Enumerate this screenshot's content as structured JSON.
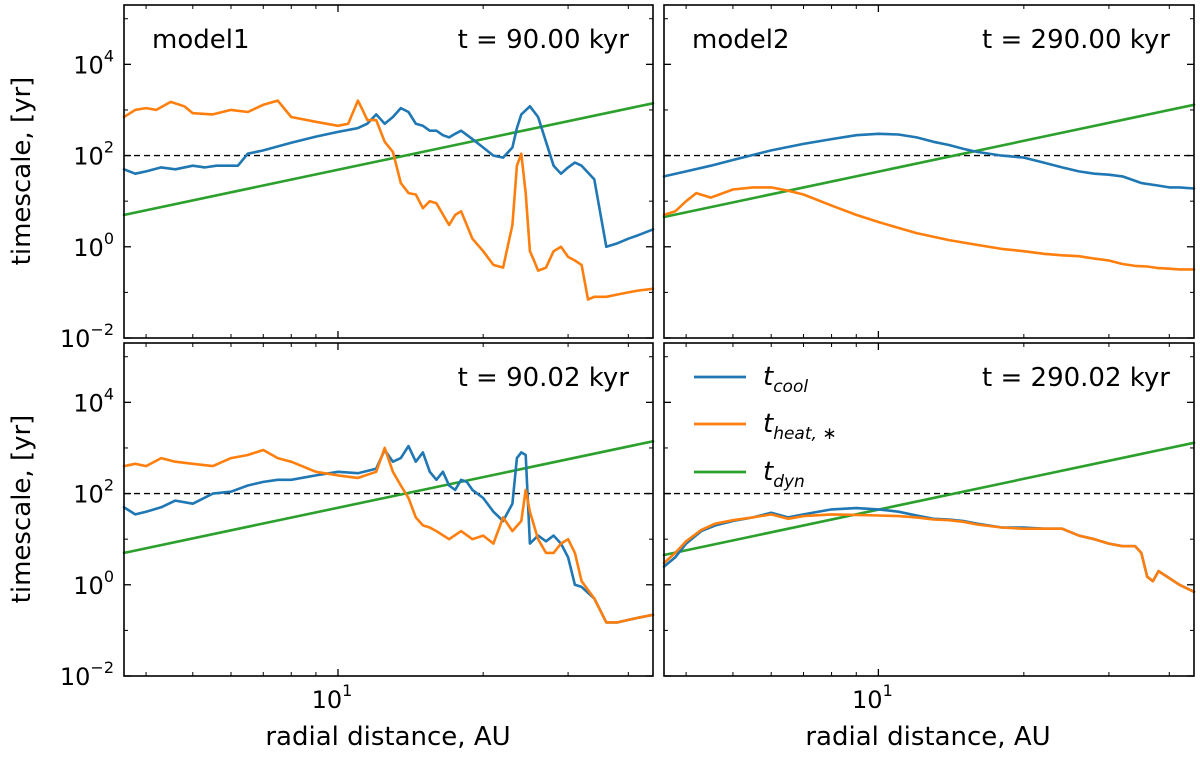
{
  "colors": {
    "t_cool": "#1f77b4",
    "t_heat": "#ff7f0e",
    "t_dyn": "#2ca02c",
    "reference": "#000000"
  },
  "axes": {
    "xlabel": "radial distance, AU",
    "ylabel": "timescale, [yr]",
    "x_tick_label": {
      "base": "10",
      "exp": "1"
    },
    "y_tick_labels": [
      {
        "base": "10",
        "exp": "4",
        "value": 10000
      },
      {
        "base": "10",
        "exp": "2",
        "value": 100
      },
      {
        "base": "10",
        "exp": "0",
        "value": 1
      },
      {
        "base": "10",
        "exp": "−2",
        "value": 0.01
      }
    ],
    "xlim": [
      3.6,
      45
    ],
    "ylim": [
      0.01,
      200000
    ],
    "reference_line": 100
  },
  "legend": {
    "location": "upper-left of bottom-right panel",
    "entries": [
      {
        "series": "t_cool",
        "base": "t",
        "sub": "cool"
      },
      {
        "series": "t_heat",
        "base": "t",
        "sub": "heat, ∗"
      },
      {
        "series": "t_dyn",
        "base": "t",
        "sub": "dyn"
      }
    ]
  },
  "chart_data": [
    {
      "type": "line",
      "panel": "top-left",
      "model_label": "model1",
      "time_label": "t = 90.00 kyr",
      "series": [
        {
          "name": "t_cool",
          "x": [
            3.6,
            3.8,
            4.0,
            4.3,
            4.6,
            5.0,
            5.3,
            5.6,
            6.2,
            6.5,
            7.0,
            8,
            9,
            10,
            11,
            11.5,
            12,
            12.5,
            13,
            13.5,
            14,
            14.5,
            15,
            15.5,
            16,
            16.5,
            17,
            17.5,
            18,
            19,
            20,
            21,
            22,
            23,
            23.5,
            24,
            25,
            26,
            27,
            28,
            29,
            30,
            31,
            32,
            34,
            36,
            38,
            40,
            42,
            45
          ],
          "y": [
            50,
            40,
            45,
            55,
            50,
            60,
            55,
            60,
            60,
            110,
            130,
            190,
            260,
            330,
            400,
            500,
            800,
            500,
            700,
            1100,
            900,
            500,
            450,
            350,
            350,
            280,
            250,
            300,
            350,
            230,
            150,
            100,
            90,
            150,
            400,
            800,
            1200,
            700,
            200,
            60,
            40,
            55,
            70,
            60,
            30,
            1,
            1.2,
            1.5,
            1.8,
            2.4
          ]
        },
        {
          "name": "t_heat",
          "x": [
            3.6,
            3.8,
            4.0,
            4.2,
            4.5,
            4.8,
            5.0,
            5.5,
            6,
            6.5,
            7,
            7.5,
            8,
            9,
            10,
            10.5,
            11,
            11.2,
            11.5,
            12,
            12.5,
            13,
            13.5,
            14,
            14.5,
            15,
            15.5,
            16,
            17,
            17.5,
            18,
            18.5,
            19,
            20,
            21,
            22,
            23,
            23.5,
            24,
            24.5,
            25,
            25.5,
            26,
            27,
            28,
            29,
            30,
            31,
            32,
            33,
            34,
            36,
            38,
            40,
            42,
            45
          ],
          "y": [
            700,
            1000,
            1100,
            1000,
            1500,
            1200,
            850,
            800,
            1000,
            900,
            1300,
            1600,
            700,
            550,
            450,
            500,
            1600,
            1100,
            600,
            600,
            200,
            120,
            25,
            15,
            14,
            7,
            10,
            9,
            3,
            5,
            6,
            3,
            1.5,
            0.8,
            0.4,
            0.35,
            3,
            60,
            110,
            15,
            0.8,
            0.5,
            0.3,
            0.35,
            0.8,
            1,
            0.6,
            0.5,
            0.4,
            0.07,
            0.08,
            0.08,
            0.09,
            0.1,
            0.11,
            0.12
          ]
        },
        {
          "name": "t_dyn",
          "x": [
            3.6,
            45
          ],
          "y": [
            5,
            1400
          ]
        }
      ]
    },
    {
      "type": "line",
      "panel": "top-right",
      "model_label": "model2",
      "time_label": "t = 290.00 kyr",
      "series": [
        {
          "name": "t_cool",
          "x": [
            3.6,
            4.0,
            4.5,
            5,
            6,
            7,
            8,
            9,
            10,
            11,
            12,
            13,
            14,
            15,
            16,
            18,
            20,
            22,
            24,
            26,
            28,
            30,
            32,
            35,
            38,
            40,
            42,
            45
          ],
          "y": [
            35,
            45,
            60,
            80,
            130,
            180,
            230,
            280,
            300,
            290,
            250,
            200,
            170,
            140,
            120,
            100,
            90,
            70,
            55,
            45,
            40,
            38,
            35,
            25,
            22,
            20,
            20,
            19
          ]
        },
        {
          "name": "t_heat",
          "x": [
            3.6,
            3.8,
            4.0,
            4.2,
            4.5,
            5,
            5.5,
            6,
            6.5,
            7,
            8,
            9,
            10,
            11,
            12,
            14,
            16,
            18,
            20,
            22,
            24,
            26,
            28,
            30,
            32,
            34,
            36,
            38,
            40,
            42,
            45
          ],
          "y": [
            5,
            6,
            10,
            15,
            12,
            18,
            20,
            20,
            17,
            14,
            8,
            5,
            3.5,
            2.6,
            2.0,
            1.4,
            1.1,
            0.9,
            0.8,
            0.7,
            0.65,
            0.62,
            0.55,
            0.5,
            0.42,
            0.38,
            0.37,
            0.34,
            0.33,
            0.32,
            0.32
          ]
        },
        {
          "name": "t_dyn",
          "x": [
            3.6,
            45
          ],
          "y": [
            4.5,
            1300
          ]
        }
      ]
    },
    {
      "type": "line",
      "panel": "bottom-left",
      "model_label": "",
      "time_label": "t = 90.02 kyr",
      "series": [
        {
          "name": "t_cool",
          "x": [
            3.6,
            3.8,
            4.0,
            4.3,
            4.6,
            5.0,
            5.5,
            6,
            6.5,
            7,
            7.5,
            8,
            9,
            10,
            11,
            12,
            12.5,
            13,
            13.5,
            14,
            14.5,
            15,
            15.5,
            16,
            16.5,
            17,
            17.5,
            18,
            18.5,
            19,
            20,
            21,
            22,
            23,
            23.5,
            24,
            24.5,
            25,
            26,
            27,
            28,
            29,
            30,
            31,
            32,
            34,
            36,
            38,
            40,
            42,
            45
          ],
          "y": [
            50,
            35,
            40,
            50,
            70,
            60,
            100,
            110,
            150,
            180,
            200,
            200,
            250,
            300,
            280,
            350,
            900,
            500,
            600,
            1100,
            500,
            800,
            300,
            200,
            300,
            150,
            120,
            200,
            180,
            120,
            80,
            40,
            25,
            60,
            600,
            800,
            700,
            8,
            12,
            9,
            12,
            8,
            4,
            1,
            0.9,
            0.5,
            0.15,
            0.15,
            0.17,
            0.19,
            0.22
          ]
        },
        {
          "name": "t_heat",
          "x": [
            3.6,
            3.8,
            4.0,
            4.3,
            4.6,
            5.0,
            5.5,
            6,
            6.5,
            7,
            7.5,
            8,
            9,
            10,
            11,
            12,
            12.5,
            13,
            13.5,
            14,
            14.5,
            15,
            15.5,
            16,
            17,
            18,
            19,
            20,
            21,
            22,
            23,
            24,
            24.5,
            25,
            26,
            27,
            28,
            29,
            30,
            31,
            32,
            34,
            36,
            38,
            40,
            42,
            45
          ],
          "y": [
            400,
            450,
            400,
            600,
            500,
            450,
            400,
            600,
            700,
            900,
            600,
            500,
            300,
            250,
            220,
            300,
            1000,
            300,
            150,
            80,
            30,
            20,
            18,
            15,
            10,
            15,
            10,
            12,
            8,
            30,
            15,
            25,
            120,
            40,
            10,
            5,
            5,
            8,
            10,
            5,
            1.2,
            0.5,
            0.15,
            0.15,
            0.17,
            0.19,
            0.22
          ]
        },
        {
          "name": "t_dyn",
          "x": [
            3.6,
            45
          ],
          "y": [
            5,
            1400
          ]
        }
      ]
    },
    {
      "type": "line",
      "panel": "bottom-right",
      "model_label": "",
      "time_label": "t = 290.02 kyr",
      "series": [
        {
          "name": "t_cool",
          "x": [
            3.6,
            3.8,
            4.0,
            4.3,
            4.6,
            5.0,
            5.5,
            6,
            6.5,
            7,
            8,
            9,
            10,
            11,
            12,
            13,
            14,
            15,
            16,
            18,
            20,
            22,
            24,
            26,
            28,
            30,
            32,
            34,
            35,
            36,
            37,
            38,
            40,
            42,
            45
          ],
          "y": [
            2.5,
            4,
            8,
            15,
            20,
            25,
            30,
            38,
            30,
            35,
            45,
            48,
            45,
            40,
            33,
            28,
            27,
            25,
            22,
            18,
            18,
            17,
            17,
            12,
            10,
            8,
            7,
            7,
            5,
            1.5,
            1.2,
            2,
            1.4,
            1,
            0.7
          ]
        },
        {
          "name": "t_heat",
          "x": [
            3.6,
            3.8,
            4.0,
            4.3,
            4.6,
            5.0,
            5.5,
            6,
            6.5,
            7,
            8,
            9,
            10,
            11,
            12,
            13,
            14,
            15,
            16,
            18,
            20,
            22,
            24,
            26,
            28,
            30,
            32,
            34,
            35,
            36,
            37,
            38,
            40,
            42,
            45
          ],
          "y": [
            3,
            5,
            9,
            16,
            22,
            26,
            30,
            35,
            28,
            32,
            35,
            34,
            33,
            32,
            30,
            27,
            26,
            24,
            21,
            18,
            17,
            17,
            17,
            12,
            10,
            8,
            7,
            7,
            5,
            1.5,
            1.2,
            2,
            1.4,
            1,
            0.7
          ]
        },
        {
          "name": "t_dyn",
          "x": [
            3.6,
            45
          ],
          "y": [
            4.5,
            1300
          ]
        }
      ]
    }
  ]
}
